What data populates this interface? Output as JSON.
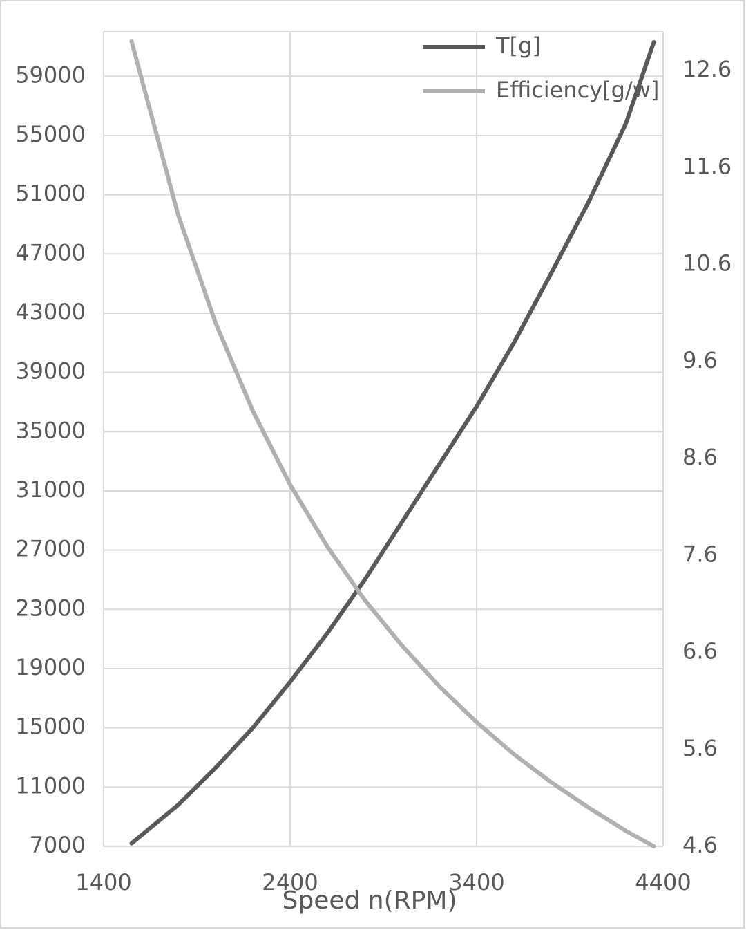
{
  "chart_data": {
    "type": "line",
    "x_label": "Speed n(RPM)",
    "x": [
      1550,
      1800,
      2000,
      2200,
      2400,
      2600,
      2800,
      3000,
      3200,
      3400,
      3600,
      3800,
      4000,
      4200,
      4350
    ],
    "series": [
      {
        "name": "T[g]",
        "color": "#595959",
        "values": [
          7200,
          9800,
          12300,
          15000,
          18100,
          21400,
          25000,
          28900,
          32800,
          36700,
          41000,
          45700,
          50500,
          55800,
          61300
        ]
      },
      {
        "name": "Efficiency[g/w]",
        "color": "#b0b0b0",
        "axis": "y2",
        "values": [
          12.9,
          11.11,
          10.0,
          9.09,
          8.33,
          7.69,
          7.14,
          6.67,
          6.25,
          5.88,
          5.55,
          5.26,
          5.0,
          4.76,
          4.6
        ]
      }
    ],
    "xlim": [
      1400,
      4400
    ],
    "xticks": [
      1400,
      2400,
      3400,
      4400
    ],
    "ylim": [
      7000,
      62000
    ],
    "yticks": [
      7000,
      11000,
      15000,
      19000,
      23000,
      27000,
      31000,
      35000,
      39000,
      43000,
      47000,
      51000,
      55000,
      59000
    ],
    "y2lim": [
      4.6,
      13.0
    ],
    "y2ticks": [
      4.6,
      5.6,
      6.6,
      7.6,
      8.6,
      9.6,
      10.6,
      11.6,
      12.6
    ],
    "grid": true,
    "legend": "top-right"
  }
}
